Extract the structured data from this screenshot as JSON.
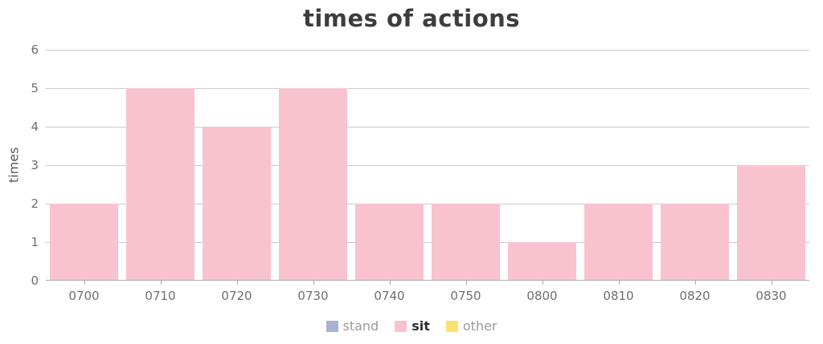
{
  "chart_data": {
    "type": "bar",
    "title": "times of actions",
    "xlabel": "",
    "ylabel": "times",
    "categories": [
      "0700",
      "0710",
      "0720",
      "0730",
      "0740",
      "0750",
      "0800",
      "0810",
      "0820",
      "0830"
    ],
    "series": [
      {
        "name": "sit",
        "color": "#f9c2cf",
        "values": [
          2,
          5,
          4,
          5,
          2,
          2,
          1,
          2,
          2,
          3
        ]
      }
    ],
    "ylim": [
      0,
      6
    ],
    "ytick_step": 1,
    "grid": true,
    "legend_position": "bottom"
  },
  "legend": {
    "items": [
      {
        "label": "stand",
        "color": "#a9b1d2",
        "active": false
      },
      {
        "label": "sit",
        "color": "#f9c2cf",
        "active": true
      },
      {
        "label": "other",
        "color": "#fce06f",
        "active": false
      }
    ]
  },
  "colors": {
    "bar_fill": "#f9c2cf",
    "gridline": "#cbcbcb",
    "baseline": "#ababab",
    "title_text": "#3d3d3d",
    "axis_text": "#6f6f6f",
    "legend_text_inactive": "#9b9b9b",
    "legend_text_active": "#2e2e2e"
  }
}
